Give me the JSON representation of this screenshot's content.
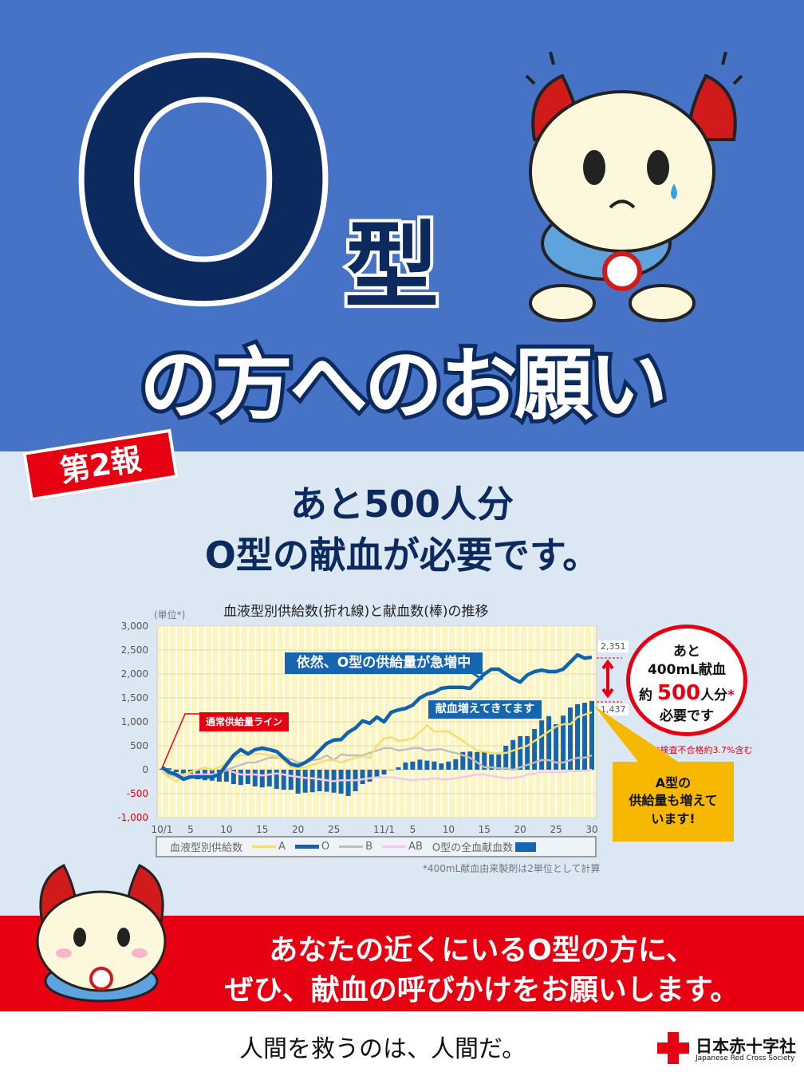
{
  "poster": {
    "big_letter": "O",
    "kata": "型",
    "headline": "の方へのお願い",
    "tag": "第2報",
    "subhead1": "あと500人分",
    "subhead2": "O型の献血が必要です。",
    "bubble": {
      "l1": "あと",
      "l2": "400mL献血",
      "l3a": "約 ",
      "l3b": "500",
      "l3c": "人分",
      "l3d": "*",
      "l4": "必要です"
    },
    "bubble_note": "*検査不合格約3.7%含む",
    "a_note": "A型の供給量も増えています!",
    "a_note_l1": "A型の",
    "a_note_l2": "供給量も増えて",
    "a_note_l3": "います!",
    "band1": "あなたの近くにいるO型の方に、",
    "band2": "ぜひ、献血の呼びかけをお願いします。",
    "slogan": "人間を救うのは、人間だ。",
    "org_jp": "日本赤十字社",
    "org_en": "Japanese Red Cross Society"
  },
  "colors": {
    "blue_bg": "#4673c6",
    "navy": "#0c2a5e",
    "red": "#e60012",
    "light_bg": "#dce7f4",
    "plot_bg": "#fdf5c0"
  },
  "chart_data": {
    "type": "line+bar",
    "title": "血液型別供給数(折れ線)と献血数(棒)の推移",
    "unit_label": "(単位*)",
    "ylim": [
      -1000,
      3000
    ],
    "yticks": [
      "3,000",
      "2,500",
      "2,000",
      "1,500",
      "1,000",
      "500",
      "0",
      "-500",
      "-1,000"
    ],
    "ytick_values": [
      3000,
      2500,
      2000,
      1500,
      1000,
      500,
      0,
      -500,
      -1000
    ],
    "xticks": [
      "10/1",
      "5",
      "10",
      "15",
      "20",
      "25",
      "11/1",
      "5",
      "10",
      "15",
      "20",
      "25",
      "30"
    ],
    "xtick_index": [
      0,
      4,
      9,
      14,
      19,
      24,
      31,
      35,
      40,
      45,
      50,
      55,
      60
    ],
    "legend_title": "血液型別供給数",
    "legend_position": "bottom",
    "footnote": "*400mL献血由来製剤は2単位として計算",
    "annotations": {
      "o_rising": "依然、O型の供給量が急増中",
      "donations_up": "献血増えてきてます",
      "normal_line": "通常供給量ライン",
      "o_last": "2,351",
      "bar_last": "1,437"
    },
    "categories": [
      "10/1",
      "10/2",
      "10/3",
      "10/4",
      "10/5",
      "10/6",
      "10/7",
      "10/8",
      "10/9",
      "10/10",
      "10/11",
      "10/12",
      "10/13",
      "10/14",
      "10/15",
      "10/16",
      "10/17",
      "10/18",
      "10/19",
      "10/20",
      "10/21",
      "10/22",
      "10/23",
      "10/24",
      "10/25",
      "10/26",
      "10/27",
      "10/28",
      "10/29",
      "10/30",
      "10/31",
      "11/1",
      "11/2",
      "11/3",
      "11/4",
      "11/5",
      "11/6",
      "11/7",
      "11/8",
      "11/9",
      "11/10",
      "11/11",
      "11/12",
      "11/13",
      "11/14",
      "11/15",
      "11/16",
      "11/17",
      "11/18",
      "11/19",
      "11/20",
      "11/21",
      "11/22",
      "11/23",
      "11/24",
      "11/25",
      "11/26",
      "11/27",
      "11/28",
      "11/29",
      "11/30"
    ],
    "series": [
      {
        "name": "A",
        "type": "line",
        "color": "#f7dc6f",
        "values": [
          -50,
          -150,
          -250,
          -100,
          -50,
          0,
          50,
          0,
          50,
          150,
          250,
          300,
          300,
          330,
          330,
          300,
          280,
          200,
          50,
          50,
          50,
          100,
          150,
          200,
          200,
          150,
          200,
          250,
          280,
          250,
          500,
          650,
          680,
          600,
          620,
          650,
          780,
          930,
          800,
          800,
          800,
          700,
          600,
          500,
          400,
          380,
          350,
          350,
          350,
          400,
          450,
          500,
          600,
          700,
          800,
          900,
          950,
          950,
          1100,
          1150,
          1200
        ]
      },
      {
        "name": "O",
        "type": "line",
        "color": "#0f62ae",
        "values": [
          50,
          -50,
          -100,
          -200,
          -150,
          -150,
          -150,
          -150,
          -100,
          100,
          300,
          420,
          330,
          420,
          450,
          420,
          380,
          250,
          120,
          80,
          150,
          250,
          400,
          550,
          620,
          630,
          780,
          870,
          1020,
          970,
          1100,
          1000,
          1200,
          1250,
          1280,
          1350,
          1500,
          1580,
          1620,
          1700,
          1720,
          1720,
          1720,
          1700,
          1850,
          2000,
          2100,
          2100,
          2000,
          1900,
          1830,
          1980,
          2050,
          2080,
          2050,
          2050,
          2100,
          2250,
          2400,
          2330,
          2351
        ]
      },
      {
        "name": "B",
        "type": "line",
        "color": "#bfbfbf",
        "values": [
          -50,
          -100,
          -150,
          -150,
          -150,
          -150,
          -150,
          -150,
          -100,
          0,
          50,
          100,
          150,
          150,
          200,
          250,
          250,
          250,
          220,
          150,
          150,
          200,
          220,
          300,
          200,
          320,
          300,
          300,
          300,
          350,
          400,
          450,
          450,
          400,
          420,
          450,
          450,
          400,
          420,
          430,
          380,
          350,
          300,
          250,
          150,
          50,
          50,
          30,
          30,
          0,
          50,
          100,
          150,
          200,
          200,
          150,
          150,
          200,
          250,
          250,
          300
        ]
      },
      {
        "name": "AB",
        "type": "line",
        "color": "#f7c6ee",
        "values": [
          0,
          -50,
          -100,
          -100,
          -100,
          -100,
          -100,
          -100,
          -80,
          0,
          -50,
          -100,
          -100,
          -100,
          -120,
          -100,
          -80,
          -100,
          -130,
          -150,
          -170,
          -180,
          -200,
          -220,
          -240,
          -220,
          -220,
          -220,
          -200,
          -180,
          -160,
          -160,
          -160,
          -180,
          -200,
          -220,
          -200,
          -200,
          -180,
          -200,
          -200,
          -180,
          -150,
          -130,
          -100,
          -100,
          -130,
          -150,
          -180,
          -170,
          -150,
          -100,
          -80,
          -50,
          -50,
          -50,
          -50,
          -30,
          -30,
          -20,
          0
        ]
      },
      {
        "name": "O型の全血献血数",
        "type": "bar",
        "color": "#1565b0",
        "values": [
          20,
          30,
          -50,
          -120,
          -150,
          -200,
          -220,
          -230,
          -250,
          -250,
          -300,
          -320,
          -300,
          -350,
          -370,
          -350,
          -400,
          -420,
          -420,
          -500,
          -480,
          -470,
          -450,
          -460,
          -480,
          -500,
          -550,
          -450,
          -300,
          -250,
          -150,
          -100,
          -10,
          50,
          150,
          170,
          210,
          190,
          170,
          130,
          170,
          220,
          370,
          380,
          370,
          380,
          320,
          320,
          500,
          620,
          700,
          700,
          850,
          1030,
          1120,
          950,
          1130,
          1300,
          1370,
          1400,
          1437
        ]
      }
    ]
  }
}
